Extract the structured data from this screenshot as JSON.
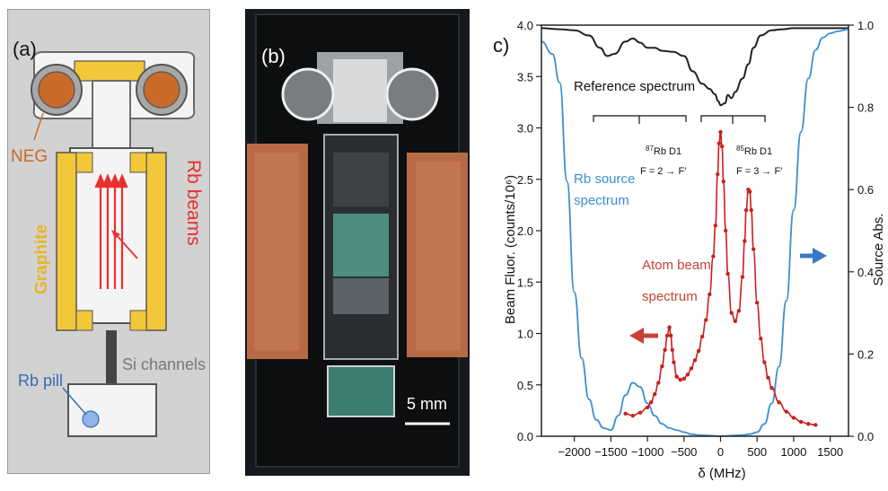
{
  "figure": {
    "panel_a": {
      "tag": "(a)",
      "labels": {
        "neg": "NEG",
        "graphite": "Graphite",
        "rb_beams": "Rb  beams",
        "rb_pill": "Rb pill",
        "si_channels": "Si channels"
      }
    },
    "panel_b": {
      "tag": "(b)",
      "scale_bar": "5 mm"
    },
    "panel_c": {
      "tag": "c)",
      "annotations": {
        "reference_spectrum": "Reference spectrum",
        "rb87_d1": "Rb D1",
        "rb87_iso": "87",
        "rb87_transition": "F = 2 → F′",
        "rb85_d1": "Rb D1",
        "rb85_iso": "85",
        "rb85_transition": "F = 3 → F′",
        "rb_source_line1": "Rb source",
        "rb_source_line2": "spectrum",
        "atom_beam_line1": "Atom beam",
        "atom_beam_line2": "spectrum"
      }
    },
    "colors": {
      "graphite_yellow": "#f2c83a",
      "neg_orange": "#c96a28",
      "beam_red": "#e83030",
      "pill_blue": "#5b8ed6",
      "copper": "#b86a45",
      "reference_black": "#222222",
      "source_blue": "#3b8fd4",
      "beam_fluor_red": "#c8201c",
      "arrow_red": "#c8413a",
      "arrow_blue": "#3b78c4"
    }
  },
  "chart_data": {
    "type": "line",
    "xlabel": "δ (MHz)",
    "ylabel": "Beam Fluor. (counts/10⁶)",
    "ylabel_right": "Source Abs.",
    "xlim": [
      -2450,
      1750
    ],
    "ylim": [
      0.0,
      4.0
    ],
    "ylim_right": [
      0.0,
      1.0
    ],
    "x_ticks": [
      -2000,
      -1500,
      -1000,
      -500,
      0,
      500,
      1000,
      1500
    ],
    "x_tick_labels": [
      "−2000",
      "−1500",
      "−1000",
      "−500",
      "0",
      "500",
      "1000",
      "1500"
    ],
    "y_ticks": [
      0.0,
      0.5,
      1.0,
      1.5,
      2.0,
      2.5,
      3.0,
      3.5,
      4.0
    ],
    "y_tick_labels": [
      "0.0",
      "0.5",
      "1.0",
      "1.5",
      "2.0",
      "2.5",
      "3.0",
      "3.5",
      "4.0"
    ],
    "y_right_ticks": [
      0.0,
      0.2,
      0.4,
      0.6,
      0.8,
      1.0
    ],
    "y_right_tick_labels": [
      "0.0",
      "0.2",
      "0.4",
      "0.6",
      "0.8",
      "1.0"
    ],
    "grid": false,
    "series": [
      {
        "axis": "left",
        "x": [
          -2450,
          -2200,
          -2000,
          -1800,
          -1650,
          -1550,
          -1450,
          -1300,
          -1200,
          -1100,
          -1000,
          -900,
          -800,
          -650,
          -500,
          -380,
          -250,
          -150,
          -80,
          -30,
          0,
          60,
          100,
          150,
          200,
          300,
          380,
          450,
          550,
          700,
          850,
          1000,
          1150,
          1300,
          1500,
          1750
        ],
        "y": [
          3.97,
          3.96,
          3.95,
          3.9,
          3.78,
          3.7,
          3.72,
          3.84,
          3.87,
          3.83,
          3.78,
          3.78,
          3.75,
          3.74,
          3.7,
          3.55,
          3.43,
          3.38,
          3.33,
          3.26,
          3.22,
          3.24,
          3.32,
          3.29,
          3.35,
          3.48,
          3.62,
          3.78,
          3.9,
          3.95,
          3.96,
          3.97,
          3.97,
          3.97,
          3.97,
          3.97
        ]
      },
      {
        "axis": "right",
        "x": [
          -2450,
          -2300,
          -2200,
          -2100,
          -2000,
          -1900,
          -1800,
          -1700,
          -1600,
          -1500,
          -1400,
          -1300,
          -1200,
          -1100,
          -1000,
          -900,
          -800,
          -700,
          -600,
          -500,
          -400,
          -300,
          -200,
          -100,
          0,
          100,
          200,
          300,
          400,
          500,
          600,
          700,
          800,
          900,
          1000,
          1100,
          1200,
          1300,
          1400,
          1500,
          1600,
          1750
        ],
        "y": [
          0.96,
          0.93,
          0.86,
          0.62,
          0.35,
          0.19,
          0.09,
          0.04,
          0.02,
          0.015,
          0.05,
          0.1,
          0.13,
          0.12,
          0.08,
          0.05,
          0.03,
          0.02,
          0.015,
          0.01,
          0.005,
          0.003,
          0.002,
          0.001,
          0.0,
          0.001,
          0.002,
          0.003,
          0.005,
          0.01,
          0.03,
          0.08,
          0.17,
          0.33,
          0.55,
          0.74,
          0.87,
          0.94,
          0.97,
          0.98,
          0.985,
          0.99
        ]
      },
      {
        "axis": "left",
        "x": [
          -1300,
          -1200,
          -1100,
          -1000,
          -950,
          -900,
          -850,
          -800,
          -760,
          -730,
          -700,
          -680,
          -660,
          -640,
          -600,
          -550,
          -500,
          -450,
          -400,
          -350,
          -300,
          -250,
          -200,
          -150,
          -100,
          -70,
          -40,
          -20,
          0,
          20,
          40,
          70,
          100,
          150,
          200,
          250,
          300,
          330,
          350,
          380,
          400,
          420,
          450,
          500,
          550,
          600,
          650,
          700,
          800,
          900,
          1000,
          1100,
          1200,
          1300
        ],
        "y": [
          0.22,
          0.2,
          0.23,
          0.28,
          0.33,
          0.41,
          0.52,
          0.68,
          0.84,
          0.98,
          1.06,
          0.98,
          0.84,
          0.72,
          0.58,
          0.55,
          0.56,
          0.6,
          0.66,
          0.74,
          0.83,
          0.97,
          1.13,
          1.38,
          1.75,
          2.05,
          2.55,
          2.85,
          2.96,
          2.82,
          2.48,
          2.0,
          1.58,
          1.2,
          1.12,
          1.22,
          1.55,
          1.9,
          2.2,
          2.4,
          2.38,
          2.2,
          1.82,
          1.3,
          0.95,
          0.72,
          0.57,
          0.47,
          0.33,
          0.24,
          0.18,
          0.14,
          0.12,
          0.11
        ]
      }
    ]
  }
}
